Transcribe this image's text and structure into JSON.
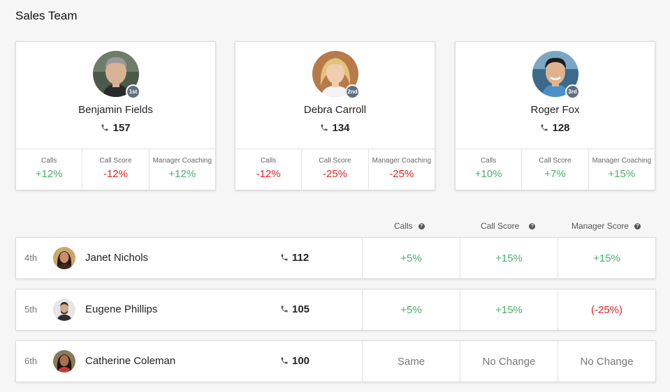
{
  "page_title": "Sales Team",
  "top_performers": [
    {
      "rank_badge": "1st",
      "name": "Benjamin Fields",
      "calls": "157",
      "metrics": [
        {
          "label": "Calls",
          "value": "+12%",
          "trend": "pos"
        },
        {
          "label": "Call Score",
          "value": "-12%",
          "trend": "neg"
        },
        {
          "label": "Manager Coaching",
          "value": "+12%",
          "trend": "pos"
        }
      ]
    },
    {
      "rank_badge": "2nd",
      "name": "Debra Carroll",
      "calls": "134",
      "metrics": [
        {
          "label": "Calls",
          "value": "-12%",
          "trend": "neg"
        },
        {
          "label": "Call Score",
          "value": "-25%",
          "trend": "neg"
        },
        {
          "label": "Manager Coaching",
          "value": "-25%",
          "trend": "neg"
        }
      ]
    },
    {
      "rank_badge": "3rd",
      "name": "Roger Fox",
      "calls": "128",
      "metrics": [
        {
          "label": "Calls",
          "value": "+10%",
          "trend": "pos"
        },
        {
          "label": "Call Score",
          "value": "+7%",
          "trend": "pos"
        },
        {
          "label": "Manager Coaching",
          "value": "+15%",
          "trend": "pos"
        }
      ]
    }
  ],
  "column_headers": {
    "calls": "Calls",
    "call_score": "Call Score",
    "manager_score": "Manager Score"
  },
  "rows": [
    {
      "rank": "4th",
      "name": "Janet Nichols",
      "calls": "112",
      "calls_change": "+5%",
      "call_score": "+15%",
      "manager_score": "+15%",
      "trends": [
        "pos",
        "pos",
        "pos"
      ]
    },
    {
      "rank": "5th",
      "name": "Eugene Phillips",
      "calls": "105",
      "calls_change": "+5%",
      "call_score": "+15%",
      "manager_score": "(-25%)",
      "trends": [
        "pos",
        "pos",
        "neg"
      ]
    },
    {
      "rank": "6th",
      "name": "Catherine Coleman",
      "calls": "100",
      "calls_change": "Same",
      "call_score": "No Change",
      "manager_score": "No Change",
      "trends": [
        "neu",
        "neu",
        "neu"
      ]
    }
  ],
  "colors": {
    "positive": "#4caf6c",
    "negative": "#e02424",
    "neutral": "#777777",
    "badge": "#5d6e80"
  },
  "icons": {
    "phone": "phone-icon",
    "help": "question-circle-icon"
  }
}
